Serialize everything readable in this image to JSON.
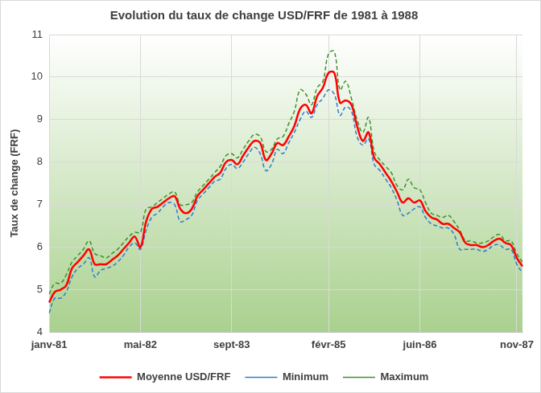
{
  "chart_data": {
    "type": "line",
    "title": "Evolution du taux de change USD/FRF de 1981 à 1988",
    "y_label": "Taux de change (FRF)",
    "categories": [
      "janv-81",
      null,
      null,
      null,
      null,
      null,
      null,
      null,
      null,
      null,
      null,
      null,
      null,
      null,
      null,
      null,
      "mai-82",
      null,
      null,
      null,
      null,
      null,
      null,
      null,
      null,
      null,
      null,
      null,
      null,
      null,
      null,
      null,
      "sept-83",
      null,
      null,
      null,
      null,
      null,
      null,
      null,
      null,
      null,
      null,
      null,
      null,
      null,
      null,
      null,
      null,
      "févr-85",
      null,
      null,
      null,
      null,
      null,
      null,
      null,
      null,
      null,
      null,
      null,
      null,
      null,
      null,
      null,
      "juin-86",
      null,
      null,
      null,
      null,
      null,
      null,
      null,
      null,
      null,
      null,
      null,
      null,
      null,
      null,
      null,
      null,
      "nov-87",
      null
    ],
    "series": [
      {
        "name": "Moyenne USD/FRF",
        "color": "#ff0000",
        "line_style": "solid",
        "values": [
          4.7,
          4.95,
          5.0,
          5.1,
          5.5,
          5.65,
          5.8,
          5.95,
          5.6,
          5.6,
          5.6,
          5.7,
          5.8,
          5.95,
          6.1,
          6.25,
          6.0,
          6.6,
          6.9,
          6.95,
          7.05,
          7.15,
          7.2,
          6.9,
          6.8,
          6.9,
          7.2,
          7.35,
          7.5,
          7.65,
          7.75,
          8.0,
          8.05,
          7.95,
          8.15,
          8.35,
          8.5,
          8.45,
          8.05,
          8.2,
          8.45,
          8.4,
          8.6,
          8.85,
          9.25,
          9.35,
          9.15,
          9.55,
          9.75,
          10.1,
          10.1,
          9.4,
          9.45,
          9.35,
          8.85,
          8.5,
          8.7,
          8.1,
          7.95,
          7.75,
          7.55,
          7.3,
          7.05,
          7.15,
          7.05,
          7.1,
          6.85,
          6.7,
          6.65,
          6.55,
          6.55,
          6.45,
          6.35,
          6.1,
          6.05,
          6.05,
          6.0,
          6.05,
          6.15,
          6.2,
          6.1,
          6.05,
          5.75,
          5.55
        ]
      },
      {
        "name": "Minimum",
        "color": "#2e7bd1",
        "line_style": "dashed",
        "values": [
          4.45,
          4.8,
          4.8,
          4.95,
          5.3,
          5.5,
          5.6,
          5.75,
          5.3,
          5.45,
          5.5,
          5.55,
          5.65,
          5.8,
          6.0,
          6.1,
          5.95,
          6.4,
          6.7,
          6.8,
          6.95,
          7.05,
          7.0,
          6.6,
          6.65,
          6.75,
          7.1,
          7.25,
          7.4,
          7.55,
          7.6,
          7.85,
          7.95,
          7.85,
          8.0,
          8.2,
          8.35,
          8.2,
          7.8,
          7.95,
          8.3,
          8.2,
          8.45,
          8.7,
          9.0,
          9.2,
          9.05,
          9.35,
          9.5,
          9.7,
          9.6,
          9.1,
          9.3,
          9.2,
          8.6,
          8.4,
          8.55,
          7.95,
          7.8,
          7.6,
          7.4,
          7.1,
          6.75,
          6.8,
          6.9,
          6.95,
          6.7,
          6.55,
          6.5,
          6.45,
          6.45,
          6.3,
          5.95,
          5.95,
          5.95,
          5.95,
          5.9,
          5.95,
          6.05,
          6.05,
          5.95,
          5.95,
          5.6,
          5.4
        ]
      },
      {
        "name": "Maximum",
        "color": "#3f8f2f",
        "line_style": "dashed",
        "values": [
          4.9,
          5.15,
          5.15,
          5.35,
          5.65,
          5.8,
          5.95,
          6.15,
          5.85,
          5.8,
          5.75,
          5.85,
          5.95,
          6.1,
          6.25,
          6.35,
          6.35,
          6.9,
          6.95,
          7.05,
          7.15,
          7.25,
          7.3,
          7.0,
          7.0,
          7.05,
          7.3,
          7.45,
          7.6,
          7.75,
          7.9,
          8.15,
          8.2,
          8.1,
          8.3,
          8.5,
          8.65,
          8.6,
          8.25,
          8.3,
          8.55,
          8.6,
          8.9,
          9.2,
          9.7,
          9.6,
          9.35,
          9.75,
          9.9,
          10.55,
          10.6,
          9.7,
          9.9,
          9.5,
          9.0,
          8.7,
          9.05,
          8.25,
          8.05,
          7.9,
          7.75,
          7.45,
          7.35,
          7.6,
          7.4,
          7.35,
          7.05,
          6.8,
          6.75,
          6.7,
          6.75,
          6.6,
          6.4,
          6.15,
          6.15,
          6.1,
          6.1,
          6.15,
          6.25,
          6.3,
          6.15,
          6.15,
          5.85,
          5.65
        ]
      }
    ],
    "ylim": [
      4,
      11
    ],
    "yticks": [
      4,
      5,
      6,
      7,
      8,
      9,
      10,
      11
    ],
    "grid": true,
    "legend": "bottom"
  }
}
